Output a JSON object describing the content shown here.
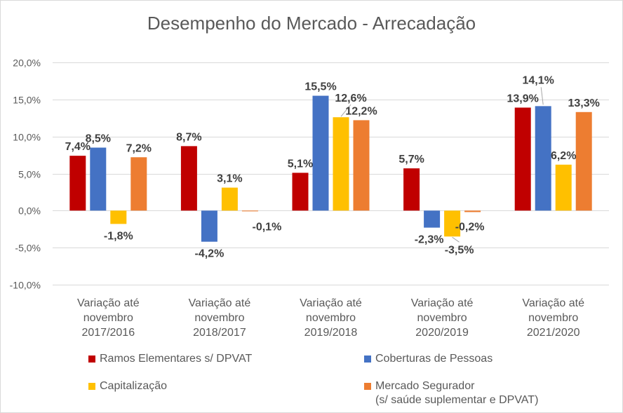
{
  "chart_data": {
    "type": "bar",
    "title": "Desempenho do Mercado - Arrecadação",
    "categories": [
      [
        "Variação até",
        "novembro",
        "2017/2016"
      ],
      [
        "Variação até",
        "novembro",
        "2018/2017"
      ],
      [
        "Variação até",
        "novembro",
        "2019/2018"
      ],
      [
        "Variação até",
        "novembro",
        "2020/2019"
      ],
      [
        "Variação até",
        "novembro",
        "2021/2020"
      ]
    ],
    "ylim": [
      -10,
      20
    ],
    "yticks": [
      -10,
      -5,
      0,
      5,
      10,
      15,
      20
    ],
    "ytick_labels": [
      "-10,0%",
      "-5,0%",
      "0,0%",
      "5,0%",
      "10,0%",
      "15,0%",
      "20,0%"
    ],
    "grid": true,
    "legend_position": "bottom",
    "series": [
      {
        "name": "Ramos Elementares s/ DPVAT",
        "color": "#c00000",
        "values": [
          7.4,
          8.7,
          5.1,
          5.7,
          13.9
        ],
        "labels": [
          "7,4%",
          "8,7%",
          "5,1%",
          "5,7%",
          "13,9%"
        ]
      },
      {
        "name": "Coberturas de Pessoas",
        "color": "#4472c4",
        "values": [
          8.5,
          -4.2,
          15.5,
          -2.3,
          14.1
        ],
        "labels": [
          "8,5%",
          "-4,2%",
          "15,5%",
          "-2,3%",
          "14,1%"
        ]
      },
      {
        "name": "Capitalização",
        "color": "#ffc000",
        "values": [
          -1.8,
          3.1,
          12.6,
          -3.5,
          6.2
        ],
        "labels": [
          "-1,8%",
          "3,1%",
          "12,6%",
          "-3,5%",
          "6,2%"
        ]
      },
      {
        "name": "Mercado Segurador",
        "name_line2": "(s/ saúde suplementar e DPVAT)",
        "color": "#ed7d31",
        "values": [
          7.2,
          -0.1,
          12.2,
          -0.2,
          13.3
        ],
        "labels": [
          "7,2%",
          "-0,1%",
          "12,2%",
          "-0,2%",
          "13,3%"
        ]
      }
    ]
  }
}
